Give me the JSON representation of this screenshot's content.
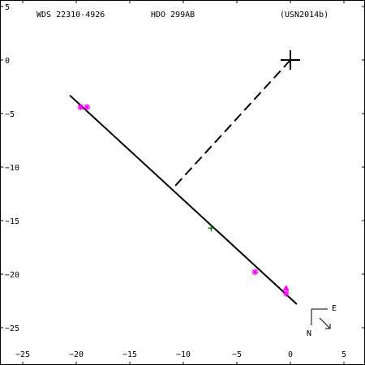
{
  "header": {
    "left": "WDS 22310-4926",
    "center": "HDO 299AB",
    "right": "(USN2014b)"
  },
  "colors": {
    "axes": "#000000",
    "fit_line": "#000000",
    "magenta_points": "#ff00ff",
    "green_points": "#008000"
  },
  "chart_data": {
    "type": "scatter",
    "xlim": [
      -26.5,
      7
    ],
    "ylim": [
      -27,
      5
    ],
    "grid": false,
    "x_ticks": [
      {
        "value": -25,
        "label": "−25"
      },
      {
        "value": -20,
        "label": "−20"
      },
      {
        "value": -15,
        "label": "−15"
      },
      {
        "value": -10,
        "label": "−10"
      },
      {
        "value": -5,
        "label": "−5"
      },
      {
        "value": 0,
        "label": "0"
      },
      {
        "value": 5,
        "label": "5"
      }
    ],
    "y_ticks": [
      {
        "value": 5,
        "label": "5"
      },
      {
        "value": 0,
        "label": "0"
      },
      {
        "value": -5,
        "label": "−5"
      },
      {
        "value": -10,
        "label": "−10"
      },
      {
        "value": -15,
        "label": "−15"
      },
      {
        "value": -20,
        "label": "−20"
      },
      {
        "value": -25,
        "label": "−25"
      }
    ],
    "primary": {
      "x": 0,
      "y": 0
    },
    "fit_line": {
      "x1": -20.6,
      "y1": -3.3,
      "x2": 0.6,
      "y2": -22.8
    },
    "projection_line": {
      "from": {
        "x": 0,
        "y": 0
      },
      "to": {
        "x": -10.8,
        "y": -11.8
      }
    },
    "magenta_points": [
      {
        "x": -19.6,
        "y": -4.4,
        "marker": "asterisk"
      },
      {
        "x": -19.0,
        "y": -4.4,
        "marker": "asterisk"
      },
      {
        "x": -3.3,
        "y": -19.8,
        "marker": "asterisk"
      },
      {
        "x": -0.4,
        "y": -21.8,
        "marker": "asterisk"
      },
      {
        "x": -0.4,
        "y": -21.3,
        "marker": "triangle"
      }
    ],
    "green_points": [
      {
        "x": -7.4,
        "y": -15.7,
        "marker": "plus"
      }
    ],
    "compass": {
      "north": "N",
      "east": "E"
    }
  }
}
